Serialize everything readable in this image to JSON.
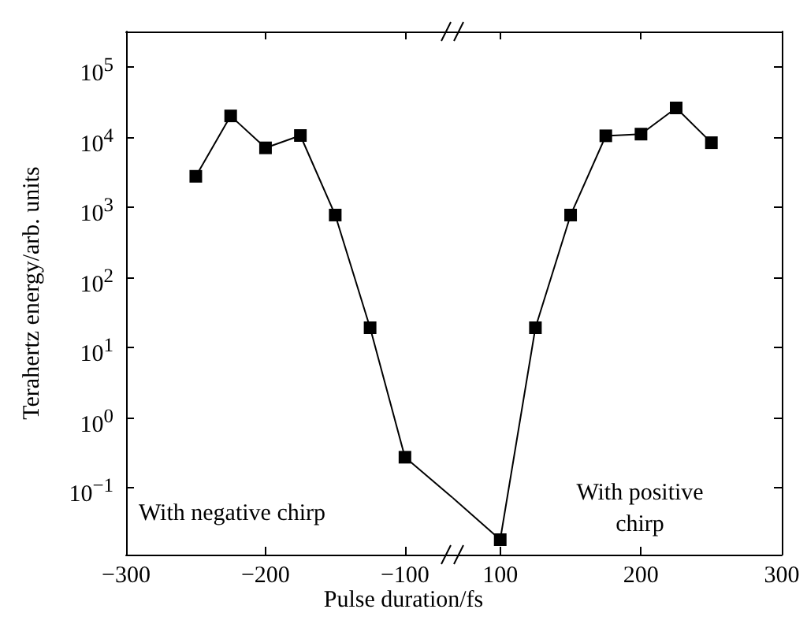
{
  "chart_data": [
    {
      "type": "line",
      "xlabel": "Pulse duration/fs",
      "ylabel": "Terahertz energy/arb. units",
      "x": [
        -250,
        -225,
        -200,
        -175,
        -150,
        -125,
        -100
      ],
      "series": [
        {
          "color": "#000000",
          "values": [
            2750,
            20000,
            7000,
            10500,
            770,
            19,
            0.27
          ]
        },
        {
          "color": "#000000",
          "x": [
            -100,
            -66
          ],
          "values": [
            0.27,
            0.072
          ],
          "marker": "none"
        }
      ],
      "xlim": [
        -300,
        -66
      ],
      "xticks": [
        {
          "value": -300,
          "label": "−300"
        },
        {
          "value": -200,
          "label": "−200"
        },
        {
          "value": -100,
          "label": "−100"
        }
      ],
      "ylim": [
        0.011,
        320000
      ],
      "log": "y",
      "yticks": [
        {
          "value": 0.1,
          "label": "10$^{−1}$"
        },
        {
          "value": 1,
          "label": "10$^{0}$"
        },
        {
          "value": 10,
          "label": "10$^{1}$"
        },
        {
          "value": 100,
          "label": "10$^{2}$"
        },
        {
          "value": 1000,
          "label": "10$^{3}$"
        },
        {
          "value": 10000,
          "label": "10$^{4}$"
        },
        {
          "value": 100000,
          "label": "10$^{5}$"
        }
      ],
      "annotations": [
        "With negative chirp"
      ],
      "marker": "square",
      "line_style": "solid"
    },
    {
      "type": "line",
      "x": [
        100,
        125,
        150,
        175,
        200,
        225,
        250
      ],
      "series": [
        {
          "color": "#000000",
          "values": [
            0.018,
            19,
            770,
            10400,
            11000,
            26000,
            8300
          ]
        },
        {
          "color": "#000000",
          "x": [
            66,
            100
          ],
          "values": [
            0.072,
            0.018
          ],
          "marker": "none"
        }
      ],
      "xlim": [
        66,
        300
      ],
      "xticks": [
        100,
        200,
        300
      ],
      "ylim": [
        0.011,
        320000
      ],
      "log": "y",
      "yticks": [
        {
          "value": 0.1,
          "label": null
        },
        {
          "value": 1,
          "label": null
        },
        {
          "value": 10,
          "label": null
        },
        {
          "value": 100,
          "label": null
        },
        {
          "value": 1000,
          "label": null
        },
        {
          "value": 10000,
          "label": null
        },
        {
          "value": 100000,
          "label": null
        }
      ],
      "tick_labels": "x",
      "annotations": [
        "With positive\nchirp"
      ],
      "marker": "square",
      "line_style": "solid"
    }
  ]
}
